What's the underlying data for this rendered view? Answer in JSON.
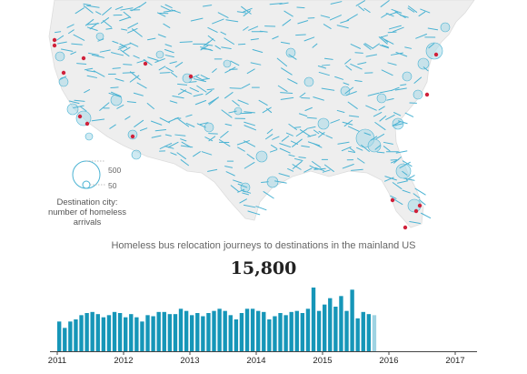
{
  "legend": {
    "values": [
      500,
      50
    ],
    "label_lines": [
      "Destination city:",
      "number of homeless",
      "arrivals"
    ]
  },
  "chart": {
    "title": "Homeless bus relocation journeys to destinations in the mainland US",
    "total": "15,800"
  },
  "colors": {
    "land": "#eeeeee",
    "bubble": "#a7d8e8",
    "arrow": "#4bb3d3",
    "origin": "#d0213a",
    "bar": "#1696b8",
    "bar_partial": "#9fd3e2"
  },
  "chart_data": {
    "type": "bar",
    "x_ticks": [
      "2011",
      "2012",
      "2013",
      "2014",
      "2015",
      "2016",
      "2017"
    ],
    "x_range": [
      2011,
      2017
    ],
    "values": [
      28,
      22,
      28,
      30,
      34,
      36,
      37,
      35,
      32,
      34,
      37,
      36,
      32,
      35,
      32,
      28,
      34,
      33,
      37,
      37,
      35,
      35,
      40,
      38,
      34,
      36,
      33,
      36,
      38,
      40,
      38,
      34,
      30,
      36,
      40,
      40,
      38,
      37,
      30,
      33,
      36,
      34,
      37,
      38,
      36,
      40,
      60,
      38,
      44,
      50,
      42,
      52,
      38,
      58,
      31,
      37,
      35,
      34
    ],
    "last_partial": true
  }
}
